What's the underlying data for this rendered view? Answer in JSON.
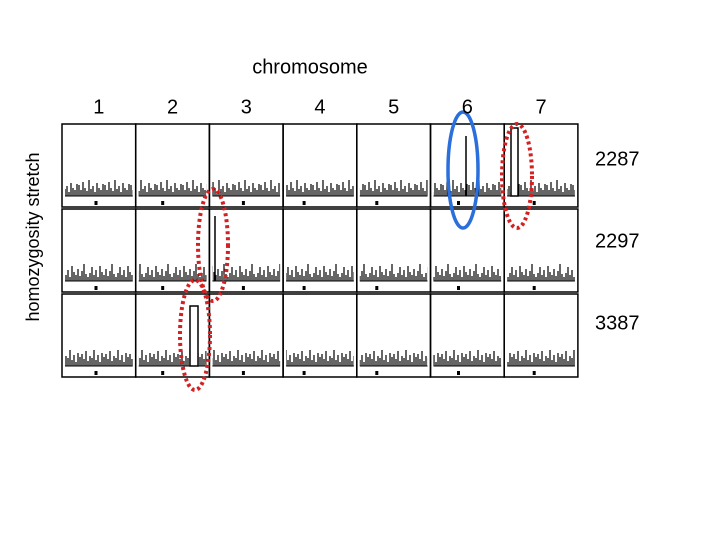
{
  "title": "chromosome",
  "y_axis_label": "homozygosity stretch",
  "columns": [
    "1",
    "2",
    "3",
    "4",
    "5",
    "6",
    "7"
  ],
  "rows": [
    "2287",
    "2297",
    "3387"
  ]
}
